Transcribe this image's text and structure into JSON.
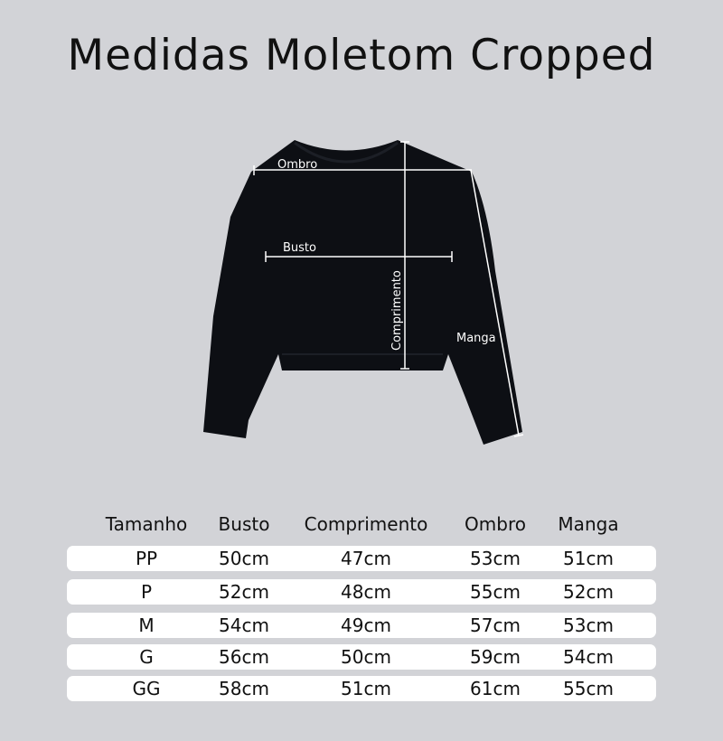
{
  "title": "Medidas Moletom Cropped",
  "diagram": {
    "labels": {
      "ombro": "Ombro",
      "busto": "Busto",
      "comprimento": "Comprimento",
      "manga": "Manga"
    },
    "garment_color": "#0d0f14",
    "line_color": "#ffffff"
  },
  "table": {
    "headers": [
      "Tamanho",
      "Busto",
      "Comprimento",
      "Ombro",
      "Manga"
    ],
    "rows": [
      [
        "PP",
        "50cm",
        "47cm",
        "53cm",
        "51cm"
      ],
      [
        "P",
        "52cm",
        "48cm",
        "55cm",
        "52cm"
      ],
      [
        "M",
        "54cm",
        "49cm",
        "57cm",
        "53cm"
      ],
      [
        "G",
        "56cm",
        "50cm",
        "59cm",
        "54cm"
      ],
      [
        "GG",
        "58cm",
        "51cm",
        "61cm",
        "55cm"
      ]
    ]
  },
  "colors": {
    "background": "#d2d3d7",
    "row_background": "#ffffff"
  }
}
